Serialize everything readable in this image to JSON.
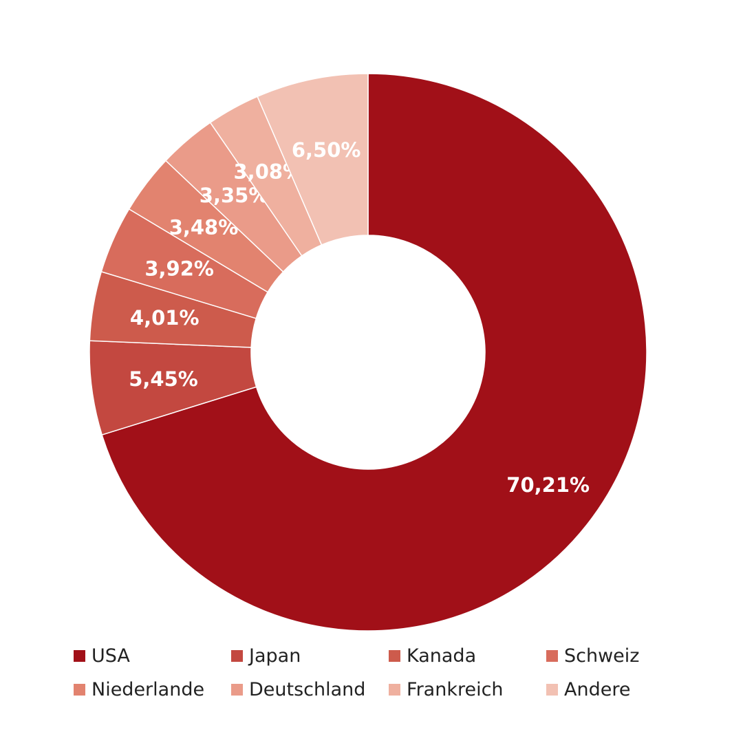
{
  "chart_data": {
    "type": "pie",
    "style": "donut",
    "title": "",
    "categories": [
      "USA",
      "Japan",
      "Kanada",
      "Schweiz",
      "Niederlande",
      "Deutschland",
      "Frankreich",
      "Andere"
    ],
    "values": [
      70.21,
      5.45,
      4.01,
      3.92,
      3.48,
      3.35,
      3.08,
      6.5
    ],
    "labels": [
      "70,21%",
      "5,45%",
      "4,01%",
      "3,92%",
      "3,48%",
      "3,35%",
      "3,08%",
      "6,50%"
    ],
    "colors": [
      "#a11018",
      "#c34840",
      "#cd5b4c",
      "#d86c5c",
      "#e2836f",
      "#ea9b89",
      "#efb09f",
      "#f2c1b3"
    ],
    "legend_position": "bottom",
    "start": "top, clockwise"
  },
  "legend": {
    "items": [
      {
        "label": "USA",
        "color": "#a11018"
      },
      {
        "label": "Japan",
        "color": "#c34840"
      },
      {
        "label": "Kanada",
        "color": "#cd5b4c"
      },
      {
        "label": "Schweiz",
        "color": "#d86c5c"
      },
      {
        "label": "Niederlande",
        "color": "#e2836f"
      },
      {
        "label": "Deutschland",
        "color": "#ea9b89"
      },
      {
        "label": "Frankreich",
        "color": "#efb09f"
      },
      {
        "label": "Andere",
        "color": "#f2c1b3"
      }
    ]
  }
}
